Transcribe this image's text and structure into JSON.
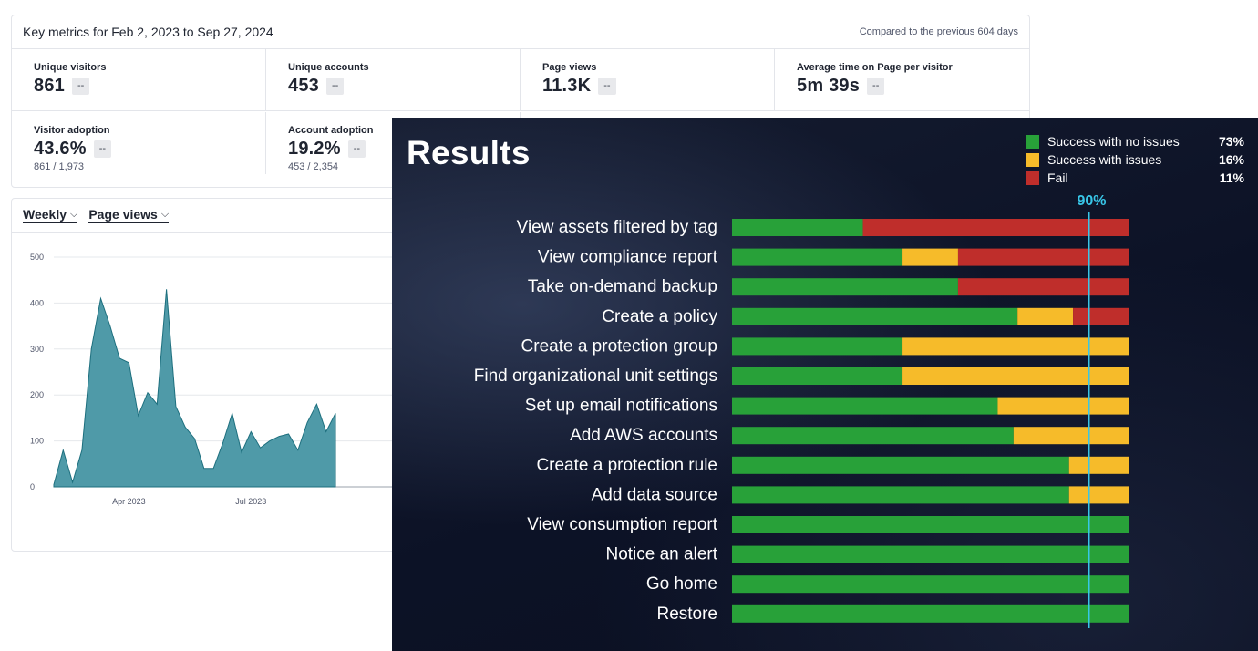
{
  "metrics": {
    "title": "Key metrics for Feb 2, 2023 to Sep 27, 2024",
    "compare": "Compared to the previous 604 days",
    "row1": [
      {
        "label": "Unique visitors",
        "value": "861",
        "delta": "--"
      },
      {
        "label": "Unique accounts",
        "value": "453",
        "delta": "--"
      },
      {
        "label": "Page views",
        "value": "11.3K",
        "delta": "--"
      },
      {
        "label": "Average time on Page per visitor",
        "value": "5m 39s",
        "delta": "--"
      }
    ],
    "row2": [
      {
        "label": "Visitor adoption",
        "value": "43.6%",
        "delta": "--",
        "sub": "861 / 1,973"
      },
      {
        "label": "Account adoption",
        "value": "19.2%",
        "delta": "--",
        "sub": "453 / 2,354"
      }
    ]
  },
  "toolbar": {
    "interval": "Weekly",
    "measure": "Page views",
    "chevron": "⌵"
  },
  "chart_data": [
    {
      "type": "area",
      "title": "",
      "color": "#4f9aa8",
      "yticks": [
        "500",
        "400",
        "300",
        "200",
        "100",
        "0"
      ],
      "ylim": [
        0,
        500
      ],
      "xtick_labels": [
        {
          "label": "Apr 2023",
          "week": 8
        },
        {
          "label": "Jul 2023",
          "week": 21
        }
      ],
      "values": [
        5,
        80,
        10,
        80,
        300,
        410,
        350,
        280,
        270,
        155,
        205,
        180,
        430,
        175,
        130,
        105,
        40,
        40,
        95,
        160,
        75,
        120,
        85,
        100,
        110,
        115,
        80,
        140,
        180,
        120,
        160
      ],
      "grid": true
    },
    {
      "type": "bar",
      "stacked": true,
      "orientation": "horizontal",
      "title": "Results",
      "categories": [
        "View assets filtered by tag",
        "View compliance report",
        "Take on-demand backup",
        "Create a policy",
        "Create a protection group",
        "Find organizational unit settings",
        "Set up email notifications",
        "Add AWS accounts",
        "Create a protection rule",
        "Add data source",
        "View consumption report",
        "Notice an alert",
        "Go home",
        "Restore"
      ],
      "series": [
        {
          "name": "Success with no issues",
          "total": "73%",
          "color": "#28a139",
          "values": [
            33,
            43,
            57,
            72,
            43,
            43,
            67,
            71,
            85,
            85,
            100,
            100,
            100,
            100
          ]
        },
        {
          "name": "Success with issues",
          "total": "16%",
          "color": "#f6bb2a",
          "values": [
            0,
            14,
            0,
            14,
            57,
            57,
            33,
            29,
            15,
            15,
            0,
            0,
            0,
            0
          ]
        },
        {
          "name": "Fail",
          "total": "11%",
          "color": "#bf2e2b",
          "values": [
            67,
            43,
            43,
            14,
            0,
            0,
            0,
            0,
            0,
            0,
            0,
            0,
            0,
            0
          ]
        }
      ],
      "xlim": [
        0,
        100
      ],
      "threshold": {
        "value": 90,
        "label": "90%",
        "color": "#38c6e8"
      },
      "legend": "top-right"
    }
  ]
}
